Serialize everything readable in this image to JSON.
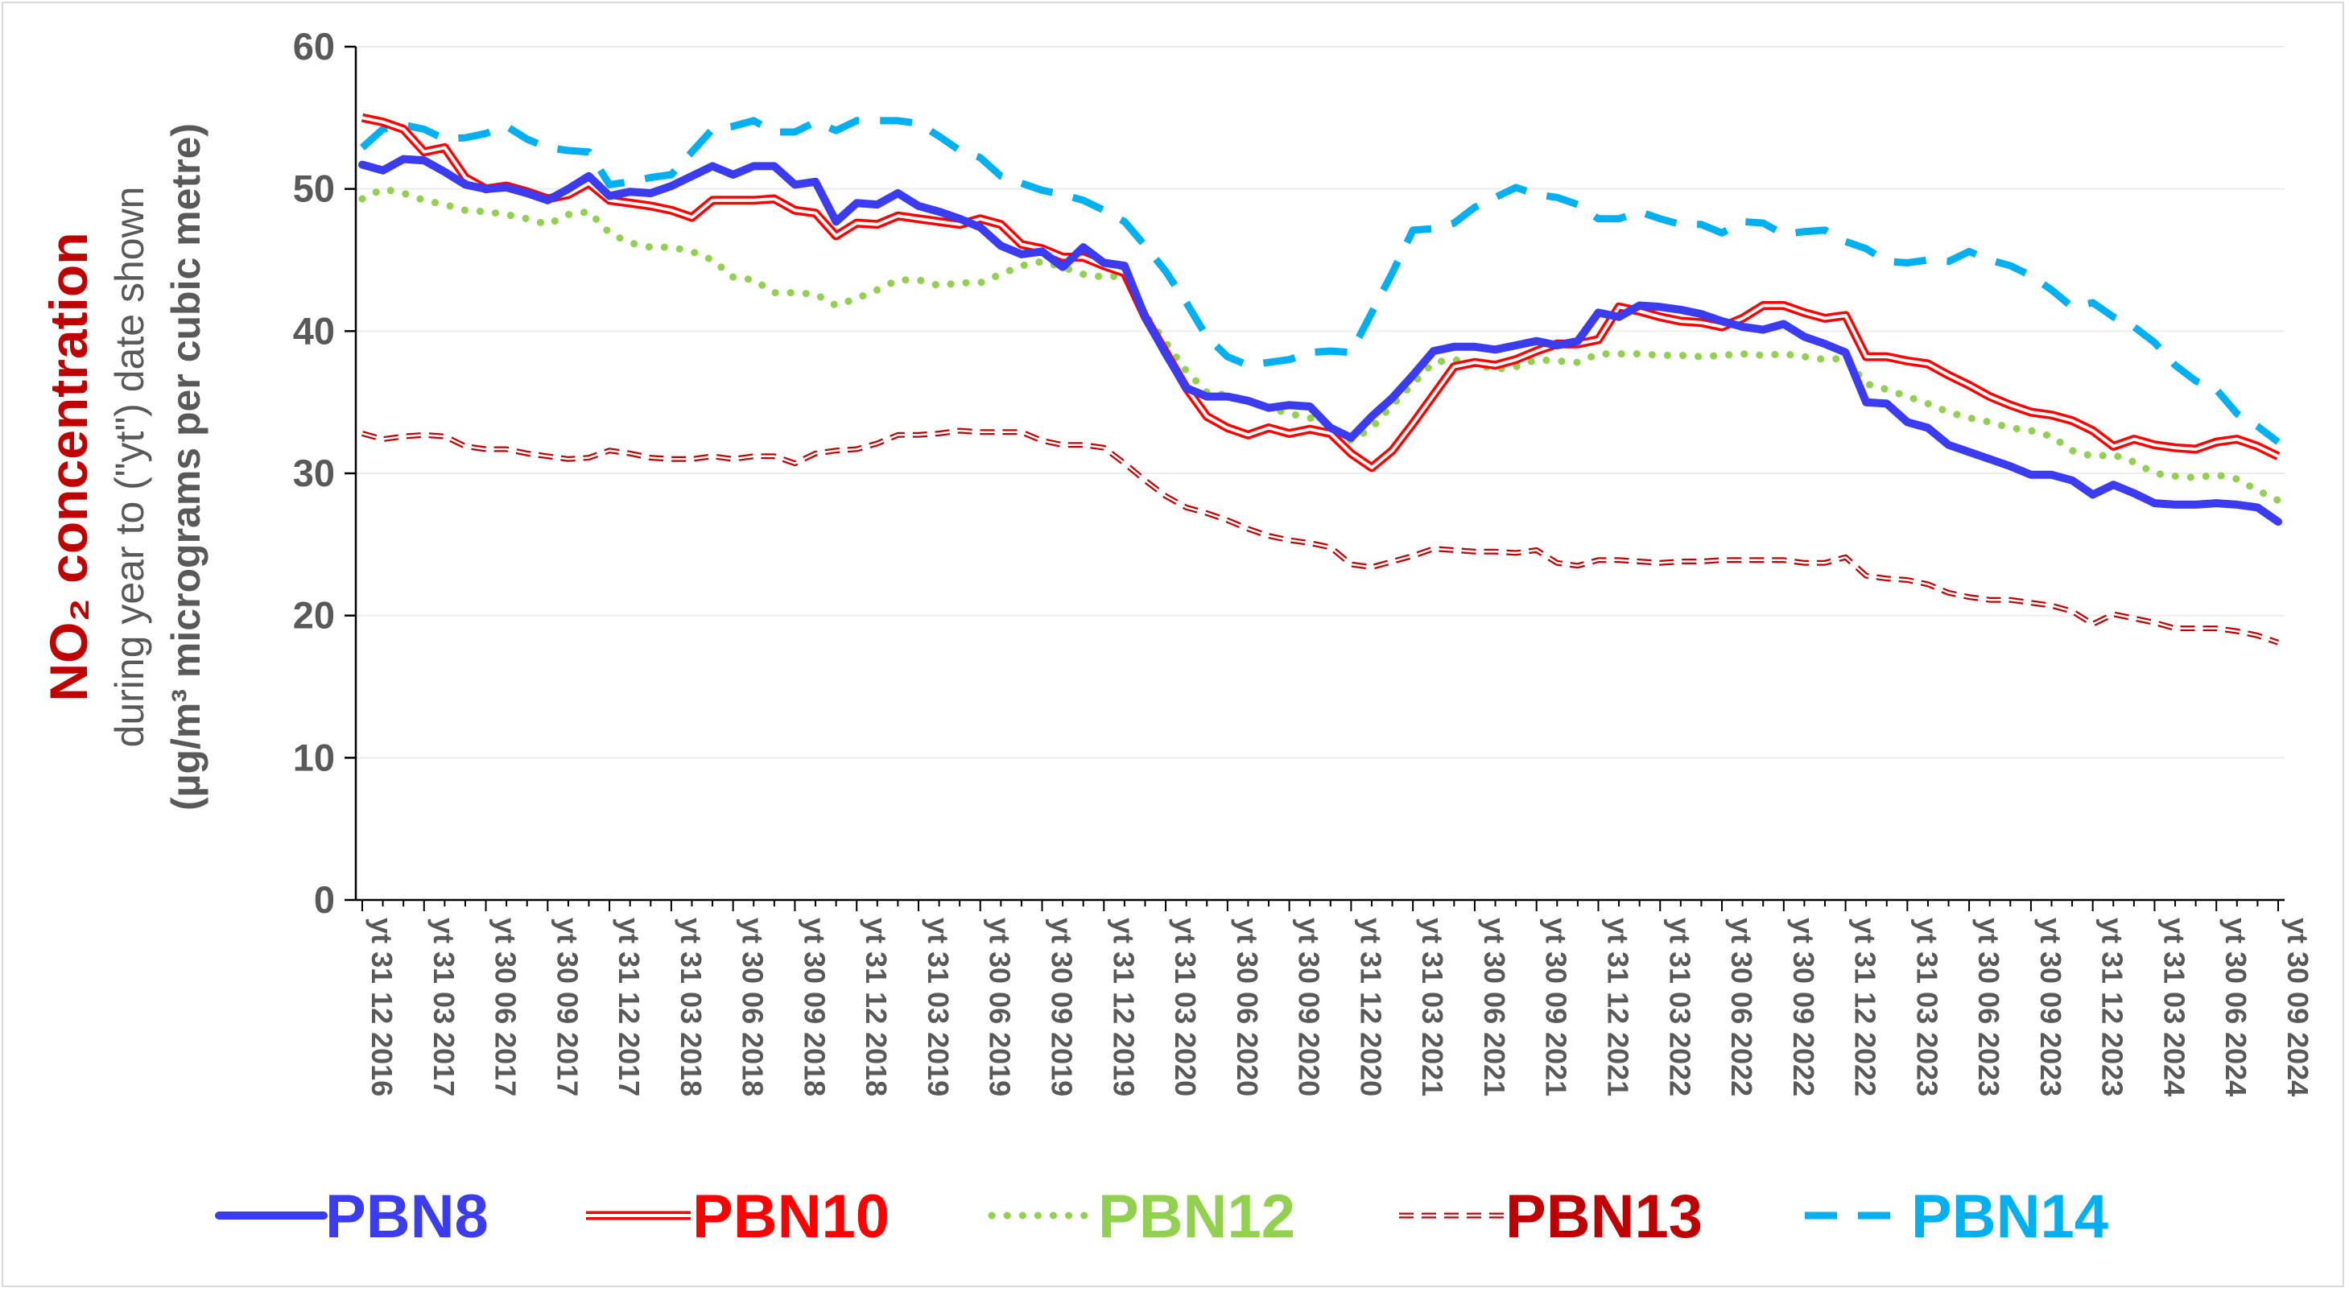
{
  "chart_data": {
    "type": "line",
    "ylabel": {
      "main": "NO₂ concentration",
      "line2": "during year to (\"yt\") date shown",
      "line3": "(µg/m³ micrograms per cubic metre)"
    },
    "ylim": [
      0,
      60
    ],
    "yticks": [
      "0",
      "10",
      "20",
      "30",
      "40",
      "50",
      "60"
    ],
    "grid": "horizontal",
    "legend_position": "bottom",
    "x_tick_labels": [
      "yt 31 12 2016",
      "yt 31 03 2017",
      "yt 30 06 2017",
      "yt 30 09 2017",
      "yt 31 12 2017",
      "yt 31 03 2018",
      "yt 30 06 2018",
      "yt 30 09 2018",
      "yt 31 12 2018",
      "yt 31 03 2019",
      "yt 30 06 2019",
      "yt 30 09 2019",
      "yt 31 12 2019",
      "yt 31 03 2020",
      "yt 30 06 2020",
      "yt 30 09 2020",
      "yt 31 12 2020",
      "yt 31 03 2021",
      "yt 30 06 2021",
      "yt 30 09 2021",
      "yt 31 12 2021",
      "yt 31 03 2022",
      "yt 30 06 2022",
      "yt 30 09 2022",
      "yt 31 12 2022",
      "yt 31 03 2023",
      "yt 30 06 2023",
      "yt 30 09 2023",
      "yt 31 12 2023",
      "yt 31 03 2024",
      "yt 30 06 2024",
      "yt 30 09 2024"
    ],
    "x_note": "monthly points from yt 31 12 2016 to yt 30 09 2024 (94 points); labels every third point",
    "series": [
      {
        "name": "PBN8",
        "color": "#3b3bf0",
        "style": "solid-thick",
        "values": [
          51.7,
          51.3,
          52.1,
          52.0,
          51.2,
          50.3,
          50.0,
          50.1,
          49.7,
          49.2,
          50.0,
          50.9,
          49.5,
          49.8,
          49.7,
          50.2,
          50.9,
          51.6,
          51.0,
          51.6,
          51.6,
          50.3,
          50.5,
          47.7,
          49.0,
          48.9,
          49.7,
          48.8,
          48.4,
          47.9,
          47.3,
          46.0,
          45.4,
          45.6,
          44.5,
          45.9,
          44.8,
          44.6,
          41.0,
          38.4,
          36.0,
          35.4,
          35.4,
          35.1,
          34.6,
          34.8,
          34.7,
          33.2,
          32.5,
          34.0,
          35.3,
          36.9,
          38.6,
          38.9,
          38.9,
          38.7,
          39.0,
          39.3,
          39.0,
          39.3,
          41.3,
          41.0,
          41.8,
          41.7,
          41.5,
          41.2,
          40.7,
          40.3,
          40.1,
          40.5,
          39.6,
          39.1,
          38.5,
          35.0,
          34.9,
          33.6,
          33.2,
          32.0,
          31.5,
          31.0,
          30.5,
          29.9,
          29.9,
          29.5,
          28.5,
          29.2,
          28.6,
          27.9,
          27.8,
          27.8,
          27.9,
          27.8,
          27.6,
          26.6
        ]
      },
      {
        "name": "PBN10",
        "color": "#ff0000",
        "style": "double",
        "values": [
          55.0,
          54.7,
          54.2,
          52.6,
          52.9,
          50.8,
          50.0,
          50.2,
          49.8,
          49.3,
          49.6,
          50.4,
          49.2,
          49.0,
          48.8,
          48.5,
          48.0,
          49.2,
          49.2,
          49.2,
          49.3,
          48.5,
          48.3,
          46.7,
          47.6,
          47.5,
          48.1,
          47.9,
          47.7,
          47.5,
          47.9,
          47.5,
          46.1,
          45.8,
          45.2,
          45.2,
          44.6,
          44.1,
          41.0,
          38.5,
          36.0,
          34.0,
          33.2,
          32.7,
          33.2,
          32.8,
          33.1,
          32.8,
          31.4,
          30.4,
          31.6,
          33.5,
          35.5,
          37.5,
          37.8,
          37.6,
          38.0,
          38.6,
          39.1,
          39.1,
          39.4,
          41.7,
          41.4,
          41.0,
          40.7,
          40.6,
          40.3,
          40.9,
          41.8,
          41.8,
          41.3,
          40.9,
          41.1,
          38.2,
          38.2,
          37.9,
          37.7,
          36.9,
          36.2,
          35.4,
          34.8,
          34.3,
          34.1,
          33.7,
          33.0,
          31.9,
          32.4,
          32.0,
          31.8,
          31.7,
          32.2,
          32.4,
          31.9,
          31.2
        ]
      },
      {
        "name": "PBN12",
        "color": "#92d050",
        "style": "dotted",
        "values": [
          49.3,
          50.0,
          49.7,
          49.2,
          48.9,
          48.5,
          48.4,
          48.2,
          47.9,
          47.5,
          48.2,
          48.4,
          46.9,
          46.2,
          45.9,
          45.9,
          45.6,
          45.0,
          43.8,
          43.6,
          42.7,
          42.7,
          42.6,
          41.8,
          42.3,
          42.9,
          43.6,
          43.6,
          43.2,
          43.4,
          43.4,
          44.0,
          44.6,
          44.9,
          44.5,
          44.0,
          43.8,
          43.9,
          41.2,
          39.2,
          37.2,
          35.7,
          35.5,
          35.1,
          34.6,
          34.2,
          33.9,
          33.4,
          32.3,
          33.2,
          34.8,
          36.3,
          37.8,
          38.0,
          37.7,
          37.3,
          37.5,
          38.0,
          37.9,
          37.8,
          38.4,
          38.4,
          38.4,
          38.3,
          38.3,
          38.2,
          38.3,
          38.4,
          38.3,
          38.4,
          38.2,
          38.0,
          38.1,
          36.3,
          35.9,
          35.4,
          34.9,
          34.3,
          33.9,
          33.6,
          33.2,
          33.0,
          32.6,
          31.6,
          31.2,
          31.3,
          30.8,
          30.0,
          29.8,
          29.7,
          29.9,
          29.6,
          28.8,
          28.1
        ]
      },
      {
        "name": "PBN13",
        "color": "#c00000",
        "style": "double-dashed",
        "values": [
          32.8,
          32.4,
          32.6,
          32.7,
          32.6,
          31.9,
          31.7,
          31.7,
          31.4,
          31.2,
          31.0,
          31.1,
          31.6,
          31.4,
          31.1,
          31.0,
          31.0,
          31.2,
          31.0,
          31.2,
          31.2,
          30.7,
          31.4,
          31.6,
          31.7,
          32.1,
          32.7,
          32.7,
          32.8,
          33.0,
          32.9,
          32.9,
          32.9,
          32.3,
          32.0,
          32.0,
          31.8,
          30.7,
          29.5,
          28.4,
          27.6,
          27.2,
          26.7,
          26.1,
          25.6,
          25.3,
          25.1,
          24.8,
          23.6,
          23.4,
          23.8,
          24.2,
          24.7,
          24.6,
          24.5,
          24.5,
          24.4,
          24.6,
          23.7,
          23.5,
          23.9,
          23.9,
          23.8,
          23.7,
          23.8,
          23.8,
          23.9,
          23.9,
          23.9,
          23.9,
          23.7,
          23.7,
          24.1,
          22.8,
          22.6,
          22.5,
          22.2,
          21.6,
          21.3,
          21.1,
          21.1,
          20.9,
          20.7,
          20.3,
          19.4,
          20.1,
          19.8,
          19.5,
          19.1,
          19.1,
          19.1,
          18.9,
          18.6,
          18.1
        ]
      },
      {
        "name": "PBN14",
        "color": "#00b0f0",
        "style": "dashed",
        "values": [
          52.9,
          54.2,
          54.5,
          54.2,
          53.5,
          53.6,
          53.9,
          54.4,
          53.5,
          52.9,
          52.7,
          52.6,
          50.3,
          50.5,
          50.8,
          51.0,
          52.6,
          54.2,
          54.4,
          54.8,
          54.0,
          54.0,
          54.7,
          54.1,
          54.8,
          54.8,
          54.8,
          54.6,
          53.7,
          52.7,
          52.2,
          50.9,
          50.4,
          49.9,
          49.6,
          49.2,
          48.5,
          47.7,
          46.0,
          44.2,
          42.0,
          39.6,
          38.2,
          37.6,
          37.8,
          38.0,
          38.5,
          38.6,
          38.5,
          41.3,
          44.1,
          47.1,
          47.2,
          47.6,
          48.7,
          49.4,
          50.1,
          49.6,
          49.4,
          48.9,
          47.9,
          47.9,
          48.4,
          47.9,
          47.5,
          47.5,
          46.9,
          47.7,
          47.6,
          46.8,
          47.0,
          47.1,
          46.3,
          45.8,
          44.9,
          44.8,
          45.0,
          44.9,
          45.6,
          45.0,
          44.6,
          43.9,
          42.9,
          41.7,
          42.0,
          41.0,
          40.3,
          39.2,
          37.6,
          36.5,
          35.9,
          34.2,
          33.3,
          32.2
        ]
      }
    ]
  }
}
